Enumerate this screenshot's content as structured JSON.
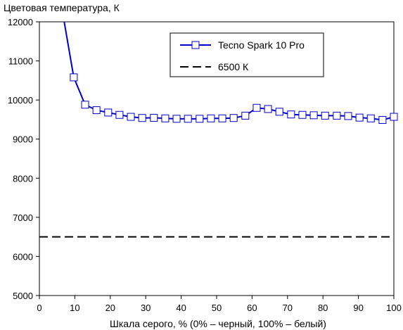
{
  "chart_data": {
    "type": "line",
    "ylabel": "Цветовая температура, К",
    "xlabel": "Шкала серого, % (0% – черный, 100% – белый)",
    "xlim": [
      0,
      100
    ],
    "ylim": [
      5000,
      12000
    ],
    "x_ticks": [
      0,
      10,
      20,
      30,
      40,
      50,
      60,
      70,
      80,
      90,
      100
    ],
    "y_ticks": [
      5000,
      6000,
      7000,
      8000,
      9000,
      10000,
      11000,
      12000
    ],
    "grid": false,
    "legend_position": "top-right",
    "series": [
      {
        "name": "Tecno Spark 10 Pro",
        "color": "#0000cc",
        "marker": "square",
        "line_start": [
          7,
          12000
        ],
        "x": [
          9.7,
          12.9,
          16.1,
          19.4,
          22.6,
          25.8,
          29.0,
          32.3,
          35.5,
          38.7,
          41.9,
          45.2,
          48.4,
          51.6,
          54.8,
          58.1,
          61.3,
          64.5,
          67.7,
          71.0,
          74.2,
          77.4,
          80.6,
          83.9,
          87.1,
          90.3,
          93.5,
          96.8,
          100
        ],
        "values": [
          10580,
          9880,
          9740,
          9680,
          9620,
          9570,
          9540,
          9545,
          9530,
          9520,
          9520,
          9520,
          9530,
          9530,
          9540,
          9600,
          9800,
          9770,
          9700,
          9630,
          9620,
          9610,
          9600,
          9600,
          9590,
          9550,
          9530,
          9490,
          9570
        ]
      },
      {
        "name": "6500 К",
        "color": "#000000",
        "style": "dashed",
        "x": [
          0,
          100
        ],
        "values": [
          6500,
          6500
        ]
      }
    ]
  }
}
